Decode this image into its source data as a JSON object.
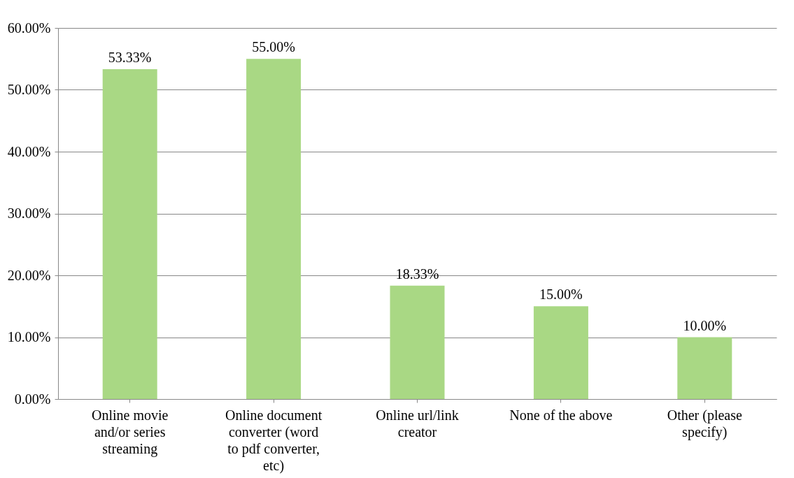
{
  "chart_data": {
    "type": "bar",
    "categories": [
      "Online movie and/or series streaming",
      "Online document converter (word to pdf converter, etc)",
      "Online url/link creator",
      "None of the above",
      "Other (please specify)"
    ],
    "values": [
      53.33,
      55.0,
      18.33,
      15.0,
      10.0
    ],
    "value_labels": [
      "53.33%",
      "55.00%",
      "18.33%",
      "15.00%",
      "10.00%"
    ],
    "color": "#a9d884",
    "ylim": [
      0,
      60
    ],
    "yticks": [
      {
        "value": 0,
        "label": "0.00%"
      },
      {
        "value": 10,
        "label": "10.00%"
      },
      {
        "value": 20,
        "label": "20.00%"
      },
      {
        "value": 30,
        "label": "30.00%"
      },
      {
        "value": 40,
        "label": "40.00%"
      },
      {
        "value": 50,
        "label": "50.00%"
      },
      {
        "value": 60,
        "label": "60.00%"
      }
    ],
    "grid": "y"
  }
}
